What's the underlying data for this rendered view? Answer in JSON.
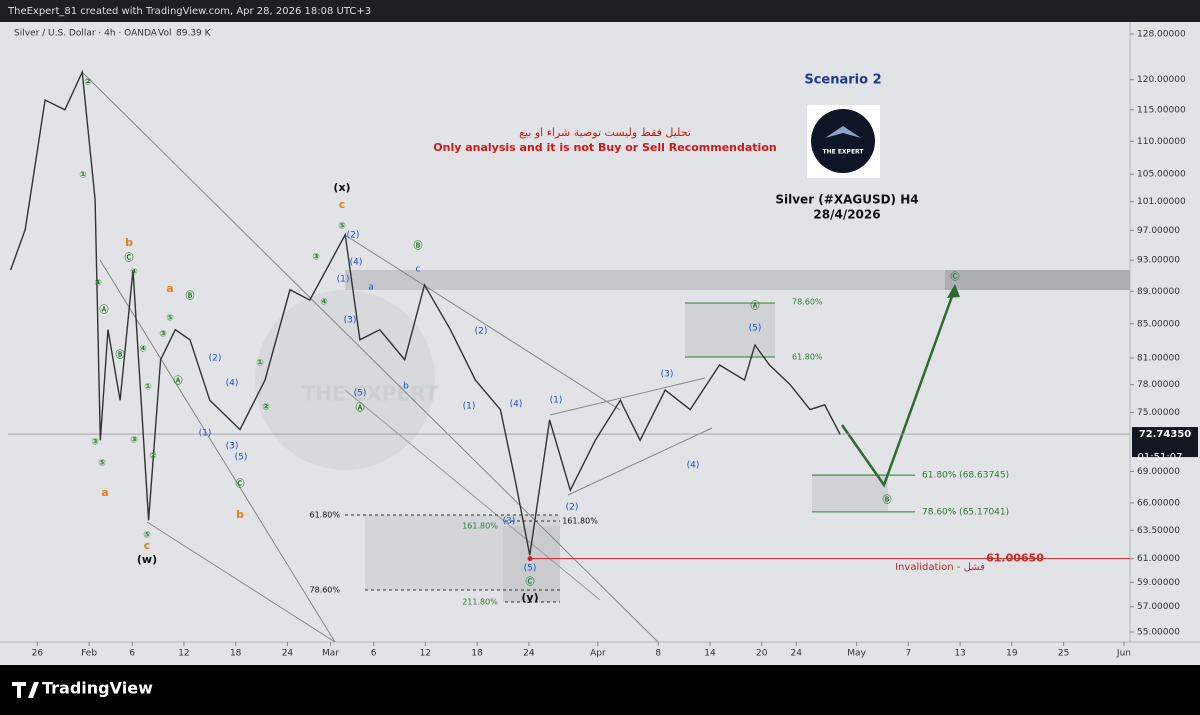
{
  "header": "TheExpert_81 created with TradingView.com, Apr 28, 2026 18:08 UTC+3",
  "chart_data": {
    "type": "line",
    "symbol": "Silver / U.S. Dollar · 4h · OANDA",
    "volume_label": "Vol",
    "volume": "89.39 K",
    "scenario": "Scenario 2",
    "disclaimer_ar": "تحليل فقط وليست توصية شراء او بيع",
    "disclaimer_en": "Only analysis and it is not Buy or Sell Recommendation",
    "title": "Silver (#XAGUSD) H4",
    "subtitle": "28/4/2026",
    "logo_text": "THE EXPERT",
    "color": "#333333",
    "log_scale": true,
    "grid": false,
    "x": [
      22.9,
      24.6,
      26.9,
      29.2,
      31.2,
      32.7,
      33.3,
      34.2,
      35.6,
      37.1,
      38.9,
      40.3,
      42.0,
      43.7,
      46.0,
      49.5,
      52.4,
      55.3,
      57.6,
      61.7,
      63.4,
      65.7,
      68.6,
      70.9,
      73.9,
      76.8,
      79.7,
      81.4,
      83.1,
      85.4,
      87.8,
      90.7,
      93.6,
      95.9,
      98.8,
      101.7,
      105.1,
      108.0,
      109.2,
      110.9,
      113.3,
      115.6,
      117.3,
      119.1
    ],
    "values": [
      91.7,
      97.1,
      116.6,
      115.0,
      121.3,
      101.3,
      72.1,
      84.3,
      76.3,
      91.7,
      64.4,
      80.8,
      84.3,
      83.1,
      76.3,
      73.2,
      78.5,
      89.2,
      87.9,
      96.4,
      83.1,
      84.3,
      80.8,
      89.8,
      84.3,
      78.5,
      75.3,
      68.2,
      61.3,
      74.2,
      67.2,
      72.1,
      76.3,
      72.1,
      77.4,
      75.3,
      80.2,
      78.5,
      82.5,
      80.2,
      78.0,
      75.3,
      75.8,
      72.7
    ],
    "xlim": [
      22.6,
      152.7
    ],
    "ylim": [
      55,
      128
    ],
    "xticks": [
      {
        "value": 26,
        "label": "26"
      },
      {
        "value": 32,
        "label": "Feb"
      },
      {
        "value": 37,
        "label": "6"
      },
      {
        "value": 43,
        "label": "12"
      },
      {
        "value": 49,
        "label": "18"
      },
      {
        "value": 55,
        "label": "24"
      },
      {
        "value": 60,
        "label": "Mar"
      },
      {
        "value": 65,
        "label": "6"
      },
      {
        "value": 71,
        "label": "12"
      },
      {
        "value": 77,
        "label": "18"
      },
      {
        "value": 83,
        "label": "24"
      },
      {
        "value": 91,
        "label": "Apr"
      },
      {
        "value": 98,
        "label": "8"
      },
      {
        "value": 104,
        "label": "14"
      },
      {
        "value": 110,
        "label": "20"
      },
      {
        "value": 114,
        "label": "24"
      },
      {
        "value": 121,
        "label": "May"
      },
      {
        "value": 127,
        "label": "7"
      },
      {
        "value": 133,
        "label": "13"
      },
      {
        "value": 139,
        "label": "19"
      },
      {
        "value": 145,
        "label": "25"
      },
      {
        "value": 152,
        "label": "Jun"
      }
    ],
    "yticks": [
      {
        "value": 128,
        "label": "128.00000"
      },
      {
        "value": 120,
        "label": "120.00000"
      },
      {
        "value": 115,
        "label": "115.00000"
      },
      {
        "value": 110,
        "label": "110.00000"
      },
      {
        "value": 105,
        "label": "105.00000"
      },
      {
        "value": 101,
        "label": "101.00000"
      },
      {
        "value": 97,
        "label": "97.00000"
      },
      {
        "value": 93,
        "label": "93.00000"
      },
      {
        "value": 89,
        "label": "89.00000"
      },
      {
        "value": 85,
        "label": "85.00000"
      },
      {
        "value": 81,
        "label": "81.00000"
      },
      {
        "value": 78,
        "label": "78.00000"
      },
      {
        "value": 75,
        "label": "75.00000"
      },
      {
        "value": 69,
        "label": "69.00000"
      },
      {
        "value": 66,
        "label": "66.00000"
      },
      {
        "value": 63.5,
        "label": "63.50000"
      },
      {
        "value": 61,
        "label": "61.00000"
      },
      {
        "value": 59,
        "label": "59.00000"
      },
      {
        "value": 57,
        "label": "57.00000"
      },
      {
        "value": 55,
        "label": "55.00000"
      }
    ],
    "last_price": {
      "value": 72.7435,
      "label": "72.74350"
    },
    "countdown": "01:51:07",
    "invalidation": {
      "value": 61.0065,
      "label": "61.00650"
    },
    "invalidation_text": "Invalidation - فشل",
    "target_levels": [
      {
        "value": 68.63745,
        "label": "61.80% (68.63745)"
      },
      {
        "value": 65.17041,
        "label": "78.60% (65.17041)"
      }
    ],
    "fib_labels": [
      "61.80%",
      "78.60%",
      "161.80%",
      "161.80%",
      "211.80%",
      "78.60%",
      "61.80%"
    ],
    "annotations": [
      "(x)",
      "c",
      "⑤",
      "(2)",
      "(4)",
      "(1)",
      "(3)",
      "(5)",
      "Ⓐ",
      "a",
      "b",
      "c",
      "Ⓑ",
      "③",
      "④",
      "②",
      "①",
      "④",
      "Ⓐ",
      "Ⓑ",
      "③",
      "⑤",
      "a",
      "b",
      "Ⓒ",
      "④",
      "①",
      "②",
      "③",
      "⑤",
      "c",
      "(w)",
      "a",
      "Ⓑ",
      "④",
      "⑤",
      "③",
      "Ⓐ",
      "(2)",
      "(4)",
      "(1)",
      "(3)",
      "(5)",
      "①",
      "②",
      "Ⓒ",
      "b",
      "(2)",
      "(1)",
      "(4)",
      "(3)",
      "(5)",
      "Ⓒ",
      "(y)",
      "(1)",
      "(2)",
      "(3)",
      "(4)",
      "(5)",
      "Ⓐ",
      "Ⓑ",
      "Ⓒ"
    ]
  },
  "footer_brand": "TradingView"
}
